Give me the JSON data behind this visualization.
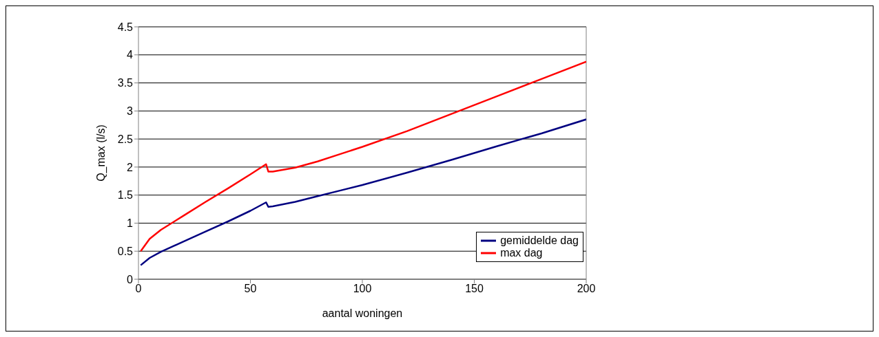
{
  "chart_data": {
    "type": "line",
    "xlabel": "aantal woningen",
    "ylabel": "Q_max (l/s)",
    "xlim": [
      0,
      200
    ],
    "xticks": [
      0,
      50,
      100,
      150,
      200
    ],
    "ylim": [
      0,
      4.5
    ],
    "yticks": [
      0,
      0.5,
      1,
      1.5,
      2,
      2.5,
      3,
      3.5,
      4,
      4.5
    ],
    "grid": "y",
    "legend": "bottom right",
    "marker": "none",
    "line_style": "solid",
    "x": [
      1,
      5,
      10,
      20,
      30,
      40,
      50,
      57,
      58,
      60,
      70,
      80,
      90,
      100,
      120,
      140,
      160,
      180,
      200
    ],
    "series": [
      {
        "name": "gemiddelde dag",
        "color": "#000080",
        "values": [
          0.25,
          0.38,
          0.49,
          0.67,
          0.85,
          1.03,
          1.22,
          1.37,
          1.29,
          1.3,
          1.38,
          1.48,
          1.58,
          1.68,
          1.9,
          2.13,
          2.37,
          2.6,
          2.85
        ]
      },
      {
        "name": "max dag",
        "color": "#ff0000",
        "values": [
          0.5,
          0.72,
          0.88,
          1.13,
          1.38,
          1.62,
          1.87,
          2.05,
          1.92,
          1.92,
          1.99,
          2.1,
          2.23,
          2.36,
          2.64,
          2.95,
          3.26,
          3.57,
          3.88
        ]
      }
    ]
  }
}
